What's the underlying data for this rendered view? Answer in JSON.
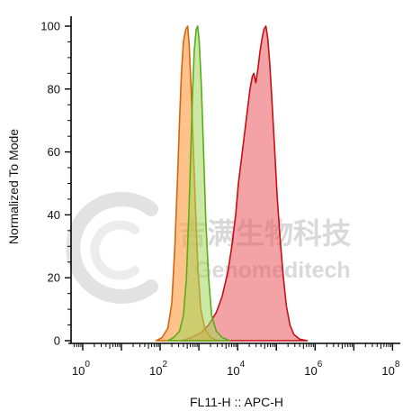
{
  "chart_data": {
    "type": "area",
    "title": "",
    "xlabel": "FL11-H :: APC-H",
    "ylabel": "Normalized To Mode",
    "xscale": "log",
    "xlim_log10": [
      -0.3,
      8.2
    ],
    "ylim": [
      0,
      102
    ],
    "x_ticks": [
      {
        "base": "10",
        "exp": "0",
        "value": 0
      },
      {
        "base": "10",
        "exp": "2",
        "value": 2
      },
      {
        "base": "10",
        "exp": "4",
        "value": 4
      },
      {
        "base": "10",
        "exp": "6",
        "value": 6
      },
      {
        "base": "10",
        "exp": "8",
        "value": 8
      }
    ],
    "y_ticks": [
      "0",
      "20",
      "40",
      "60",
      "80",
      "100"
    ],
    "y_tick_values": [
      0,
      20,
      40,
      60,
      80,
      100
    ],
    "series": [
      {
        "color": "#e9565d",
        "stroke": "#c41016",
        "fill_opacity": 0.55,
        "points": [
          [
            2.55,
            0
          ],
          [
            2.8,
            1
          ],
          [
            3.05,
            2.5
          ],
          [
            3.25,
            5
          ],
          [
            3.45,
            9
          ],
          [
            3.6,
            14
          ],
          [
            3.75,
            22
          ],
          [
            3.85,
            30
          ],
          [
            3.95,
            40
          ],
          [
            4.02,
            50
          ],
          [
            4.1,
            58
          ],
          [
            4.17,
            65
          ],
          [
            4.25,
            73
          ],
          [
            4.32,
            80
          ],
          [
            4.38,
            84
          ],
          [
            4.42,
            85
          ],
          [
            4.47,
            82
          ],
          [
            4.52,
            86
          ],
          [
            4.58,
            92
          ],
          [
            4.63,
            96
          ],
          [
            4.68,
            99
          ],
          [
            4.73,
            100
          ],
          [
            4.78,
            96
          ],
          [
            4.83,
            88
          ],
          [
            4.88,
            78
          ],
          [
            4.95,
            62
          ],
          [
            5.02,
            46
          ],
          [
            5.1,
            32
          ],
          [
            5.18,
            20
          ],
          [
            5.26,
            11
          ],
          [
            5.35,
            5
          ],
          [
            5.45,
            2
          ],
          [
            5.6,
            0.5
          ],
          [
            5.8,
            0
          ]
        ]
      },
      {
        "color": "#ff9a3c",
        "stroke": "#d4650e",
        "fill_opacity": 0.6,
        "points": [
          [
            1.9,
            0
          ],
          [
            2.05,
            1
          ],
          [
            2.2,
            4
          ],
          [
            2.3,
            12
          ],
          [
            2.38,
            30
          ],
          [
            2.45,
            52
          ],
          [
            2.5,
            70
          ],
          [
            2.55,
            85
          ],
          [
            2.6,
            95
          ],
          [
            2.66,
            99
          ],
          [
            2.71,
            100
          ],
          [
            2.75,
            94
          ],
          [
            2.8,
            80
          ],
          [
            2.86,
            60
          ],
          [
            2.92,
            40
          ],
          [
            2.98,
            22
          ],
          [
            3.05,
            10
          ],
          [
            3.15,
            4
          ],
          [
            3.3,
            1
          ],
          [
            3.5,
            0
          ]
        ]
      },
      {
        "color": "#a0d75a",
        "stroke": "#5aad18",
        "fill_opacity": 0.55,
        "points": [
          [
            2.2,
            0
          ],
          [
            2.35,
            1
          ],
          [
            2.5,
            3
          ],
          [
            2.6,
            8
          ],
          [
            2.68,
            20
          ],
          [
            2.74,
            40
          ],
          [
            2.79,
            60
          ],
          [
            2.84,
            80
          ],
          [
            2.88,
            92
          ],
          [
            2.93,
            99
          ],
          [
            2.97,
            100
          ],
          [
            3.01,
            95
          ],
          [
            3.06,
            82
          ],
          [
            3.12,
            60
          ],
          [
            3.18,
            38
          ],
          [
            3.25,
            20
          ],
          [
            3.33,
            8
          ],
          [
            3.45,
            3
          ],
          [
            3.6,
            1
          ],
          [
            3.8,
            0
          ]
        ]
      }
    ]
  },
  "watermark": {
    "cn": "吉满生物科技",
    "en": "Genomeditech"
  }
}
